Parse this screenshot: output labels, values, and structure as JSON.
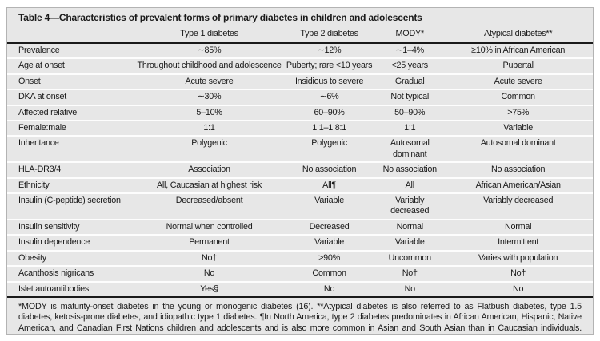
{
  "table": {
    "title": "Table 4—Characteristics of prevalent forms of primary diabetes in children and adolescents",
    "columns": [
      "",
      "Type 1 diabetes",
      "Type 2 diabetes",
      "MODY*",
      "Atypical diabetes**"
    ],
    "rows": [
      {
        "label": "Prevalence",
        "values": [
          "∼85%",
          "∼12%",
          "∼1–4%",
          "≥10% in African American"
        ]
      },
      {
        "label": "Age at onset",
        "values": [
          "Throughout childhood and adolescence",
          "Puberty; rare <10 years",
          "<25 years",
          "Pubertal"
        ]
      },
      {
        "label": "Onset",
        "values": [
          "Acute severe",
          "Insidious to severe",
          "Gradual",
          "Acute severe"
        ]
      },
      {
        "label": "DKA at onset",
        "values": [
          "∼30%",
          "∼6%",
          "Not typical",
          "Common"
        ]
      },
      {
        "label": "Affected relative",
        "values": [
          "5–10%",
          "60–90%",
          "50–90%",
          ">75%"
        ]
      },
      {
        "label": "Female:male",
        "values": [
          "1:1",
          "1.1–1.8:1",
          "1:1",
          "Variable"
        ]
      },
      {
        "label": "Inheritance",
        "values": [
          "Polygenic",
          "Polygenic",
          "Autosomal dominant",
          "Autosomal dominant"
        ]
      },
      {
        "label": "HLA-DR3/4",
        "values": [
          "Association",
          "No association",
          "No association",
          "No association"
        ]
      },
      {
        "label": "Ethnicity",
        "values": [
          "All, Caucasian at highest risk",
          "All¶",
          "All",
          "African American/Asian"
        ]
      },
      {
        "label": "Insulin (C-peptide) secretion",
        "values": [
          "Decreased/absent",
          "Variable",
          "Variably decreased",
          "Variably decreased"
        ]
      },
      {
        "label": "Insulin sensitivity",
        "values": [
          "Normal when controlled",
          "Decreased",
          "Normal",
          "Normal"
        ]
      },
      {
        "label": "Insulin dependence",
        "values": [
          "Permanent",
          "Variable",
          "Variable",
          "Intermittent"
        ]
      },
      {
        "label": "Obesity",
        "values": [
          "No†",
          ">90%",
          "Uncommon",
          "Varies with population"
        ]
      },
      {
        "label": "Acanthosis nigricans",
        "values": [
          "No",
          "Common",
          "No†",
          "No†"
        ]
      },
      {
        "label": "Islet autoantibodies",
        "values": [
          "Yes§",
          "No",
          "No",
          "No"
        ]
      }
    ],
    "footnote": "*MODY is maturity-onset diabetes in the young or monogenic diabetes (16). **Atypical diabetes is also referred to as Flatbush diabetes, type 1.5 diabetes, ketosis-prone diabetes, and idiopathic type 1 diabetes. ¶In North America, type 2 diabetes predominates in African American, Hispanic, Native American, and Canadian First Nations children and adolescents and is also more common in Asian and South Asian than in Caucasian individuals. †Mirrors rate in general population. §Diabetes-associated (islet) autoantibodies to insulin, islet cell cytoplasmic, glutamic acid decarboxylase, or tyrosine phosphatase (insulinoma-associated) antibody (IA-2, ICA512, ZnT8 antibodies in 85–95%) at diagnosis.",
    "colors": {
      "table_background": "#e7e7e7",
      "row_separator": "#fdfdfd",
      "rule": "#1a1a1a",
      "text": "#1a1a1a"
    }
  }
}
